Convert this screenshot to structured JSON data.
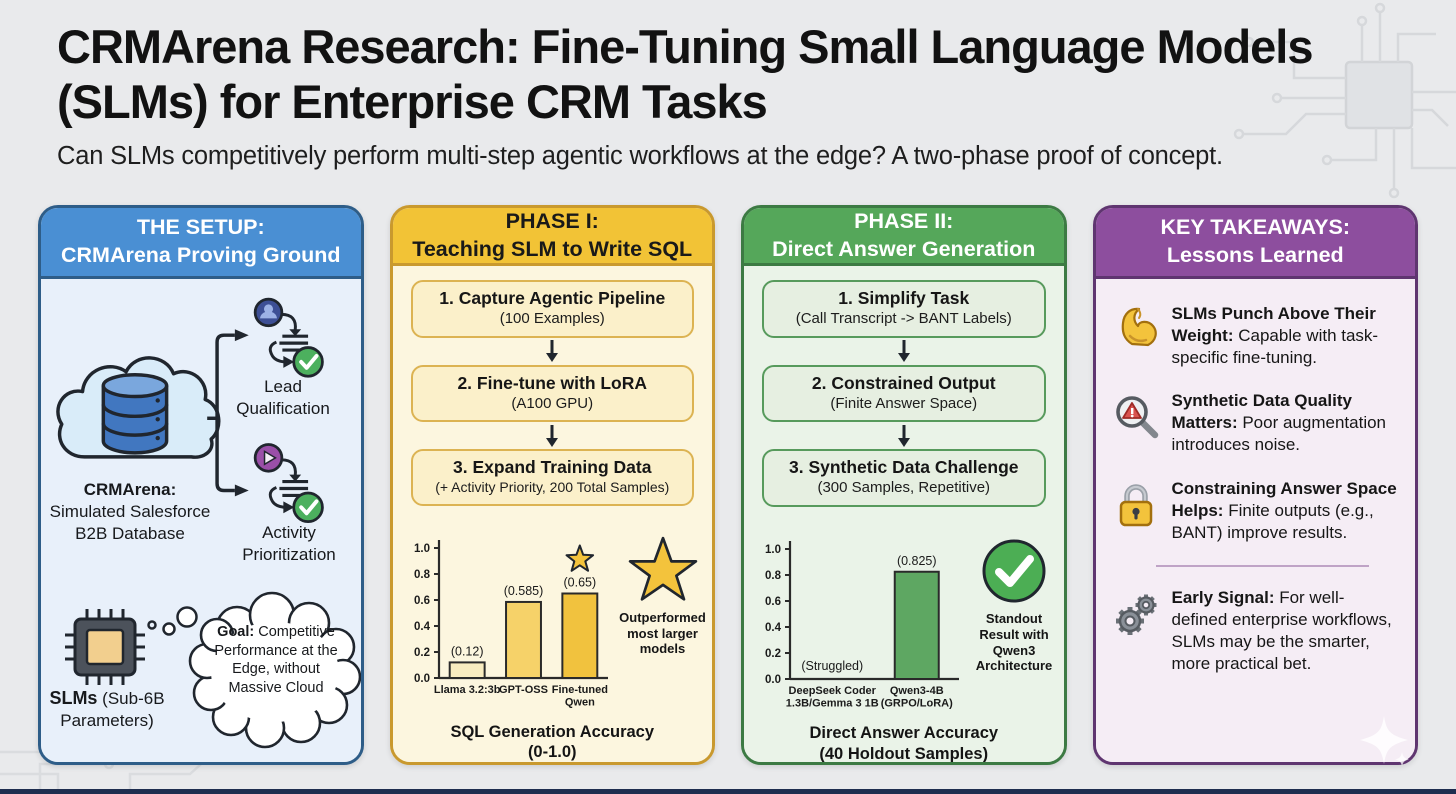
{
  "page": {
    "title": "CRMArena Research: Fine-Tuning Small Language Models (SLMs) for Enterprise CRM Tasks",
    "subtitle": "Can SLMs competitively perform multi-step agentic workflows at the edge? A two-phase proof of concept."
  },
  "setup": {
    "header_line1": "THE SETUP:",
    "header_line2": "CRMArena Proving Ground",
    "database_label_bold": "CRMArena:",
    "database_label_rest": " Simulated Salesforce B2B Database",
    "task1_label": "Lead Qualification",
    "task2_label": "Activity Prioritization",
    "slm_label_bold": "SLMs",
    "slm_label_rest": " (Sub-6B Parameters)",
    "goal_bold": "Goal:",
    "goal_rest": " Competitive Performance at the Edge, without Massive Cloud",
    "theme_color": "#4a8fd3"
  },
  "phase1": {
    "header_line1": "PHASE I:",
    "header_line2": "Teaching SLM to Write SQL",
    "steps": [
      {
        "title": "1. Capture Agentic Pipeline",
        "detail": "(100 Examples)"
      },
      {
        "title": "2. Fine-tune with LoRA",
        "detail": "(A100 GPU)"
      },
      {
        "title": "3. Expand Training Data",
        "detail": "(+ Activity Priority, 200 Total Samples)"
      }
    ],
    "annotation": "Outperformed most larger models",
    "caption_line1": "SQL Generation Accuracy",
    "caption_line2": "(0-1.0)",
    "theme_color": "#f2c336"
  },
  "phase2": {
    "header_line1": "PHASE II:",
    "header_line2": "Direct Answer Generation",
    "steps": [
      {
        "title": "1. Simplify Task",
        "detail": "(Call Transcript -> BANT Labels)"
      },
      {
        "title": "2. Constrained Output",
        "detail": "(Finite Answer Space)"
      },
      {
        "title": "3. Synthetic Data Challenge",
        "detail": "(300 Samples, Repetitive)"
      }
    ],
    "annotation": "Standout Result with Qwen3 Architecture",
    "caption_line1": "Direct Answer Accuracy",
    "caption_line2": "(40 Holdout Samples)",
    "theme_color": "#55a75a"
  },
  "takeaways": {
    "header_line1": "KEY TAKEAWAYS:",
    "header_line2": "Lessons Learned",
    "items": [
      {
        "icon": "bicep-icon",
        "lead": "SLMs Punch Above Their Weight:",
        "rest": " Capable with task-specific fine-tuning."
      },
      {
        "icon": "magnifier-warning-icon",
        "lead": "Synthetic Data Quality Matters:",
        "rest": " Poor augmentation introduces noise."
      },
      {
        "icon": "lock-icon",
        "lead": "Constraining Answer Space Helps:",
        "rest": " Finite outputs (e.g., BANT) improve results."
      },
      {
        "icon": "gears-icon",
        "lead": "Early Signal:",
        "rest": " For well-defined enterprise workflows, SLMs may be the smarter, more practical bet."
      }
    ],
    "theme_color": "#8d4e9e"
  },
  "chart_data": [
    {
      "type": "bar",
      "title": "SQL Generation Accuracy (0-1.0)",
      "categories": [
        "Llama 3.2:3b",
        "GPT-OSS",
        "Fine-tuned\nQwen"
      ],
      "values": [
        0.12,
        0.585,
        0.65
      ],
      "value_labels": [
        "(0.12)",
        "(0.585)",
        "(0.65)"
      ],
      "ylim": [
        0,
        1.0
      ],
      "yticks": [
        0.0,
        0.2,
        0.4,
        0.6,
        0.8,
        1.0
      ],
      "grid": false,
      "bar_colors": [
        "#f8ecc0",
        "#f6d269",
        "#f1c23e"
      ],
      "bar_stroke": "#2a2a2a",
      "star_bar": 2,
      "annotation": "Outperformed most larger models"
    },
    {
      "type": "bar",
      "title": "Direct Answer Accuracy (40 Holdout Samples)",
      "categories": [
        "DeepSeek Coder\n1.3B/Gemma 3 1B",
        "Qwen3-4B\n(GRPO/LoRA)"
      ],
      "values": [
        0.0,
        0.825
      ],
      "value_labels": [
        "(Struggled)",
        "(0.825)"
      ],
      "ylim": [
        0,
        1.0
      ],
      "yticks": [
        0.0,
        0.2,
        0.4,
        0.6,
        0.8,
        1.0
      ],
      "grid": false,
      "bar_colors": [
        "#e6efe1",
        "#5ea762"
      ],
      "bar_stroke": "#2a2a2a",
      "annotation": "Standout Result with Qwen3 Architecture"
    }
  ]
}
